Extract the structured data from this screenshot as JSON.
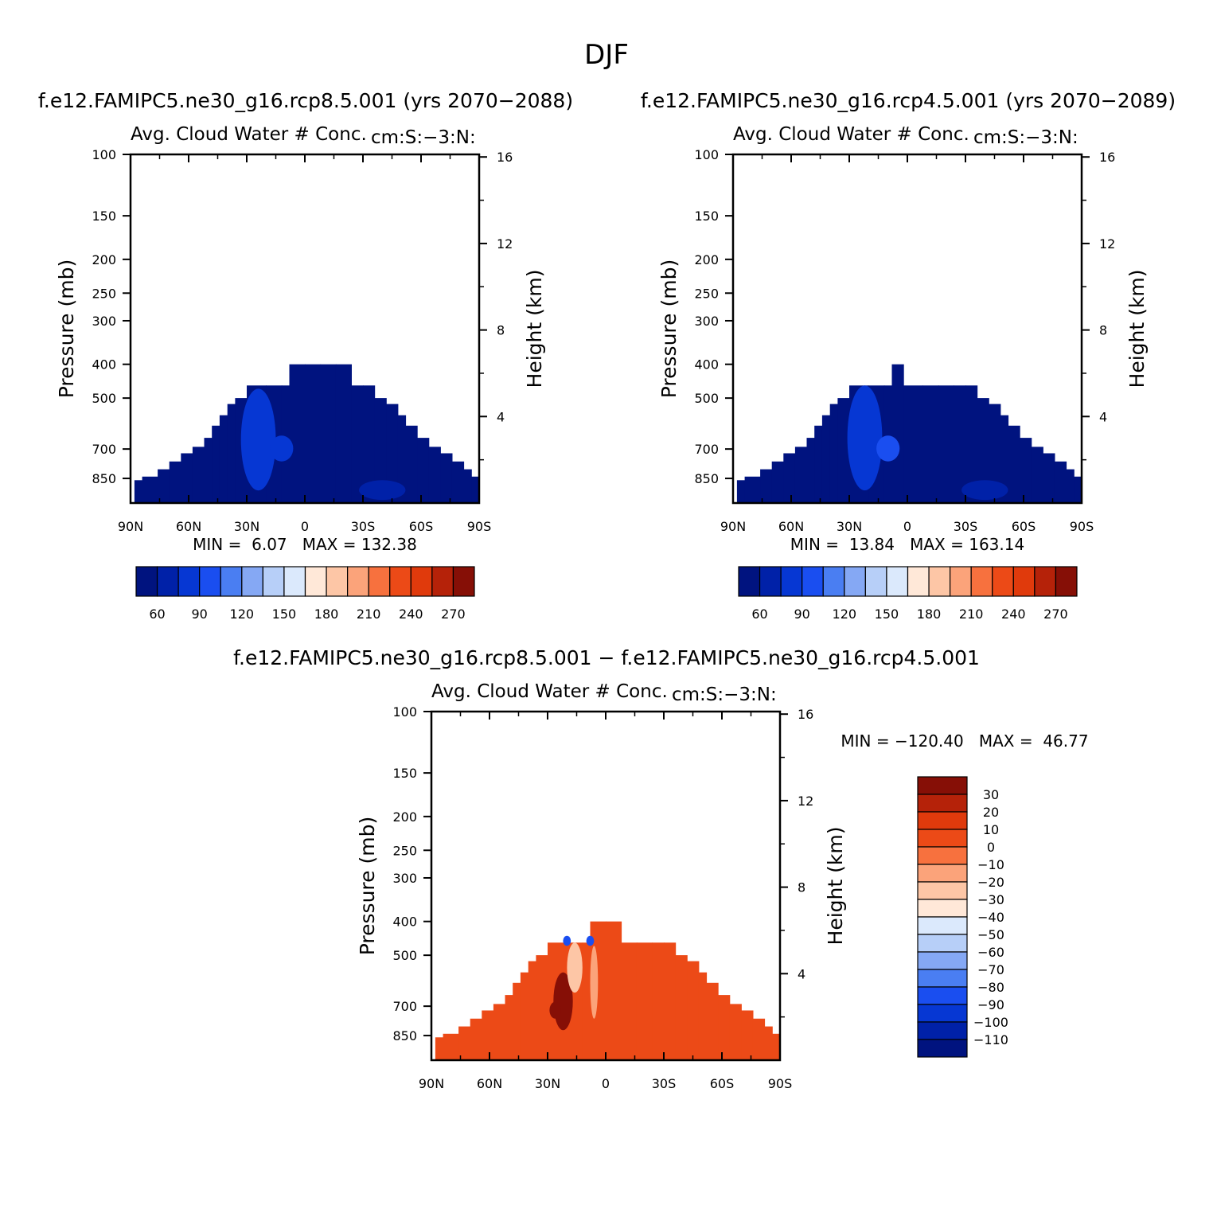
{
  "figure": {
    "title": "DJF",
    "diff_title": "f.e12.FAMIPC5.ne30_g16.rcp8.5.001 − f.e12.FAMIPC5.ne30_g16.rcp4.5.001"
  },
  "colors": {
    "abs": [
      "#00137f",
      "#0021a8",
      "#0637d3",
      "#1a4ef0",
      "#4a7ef2",
      "#85a8f4",
      "#b7cff8",
      "#dbe9fc",
      "#ffe8d8",
      "#fdc6a6",
      "#fba37a",
      "#f7713e",
      "#ec4a17",
      "#e03a0c",
      "#b52209",
      "#860f06"
    ],
    "diff": [
      "#00137f",
      "#0021a8",
      "#0637d3",
      "#1a4ef0",
      "#4a7ef2",
      "#85a8f4",
      "#b7cff8",
      "#dbe9fc",
      "#ffe8d8",
      "#fdc6a6",
      "#fba37a",
      "#f7713e",
      "#ec4a17",
      "#e03a0c",
      "#b52209",
      "#860f06"
    ]
  },
  "chart_data": [
    {
      "type": "heatmap",
      "id": "left",
      "case_title": "f.e12.FAMIPC5.ne30_g16.rcp8.5.001 (yrs 2070−2088)",
      "title": "Avg. Cloud Water # Conc.",
      "units": "cm:S:−3:N:",
      "xlabel": "",
      "ylabel": "Pressure (mb)",
      "ylabel_right": "Height (km)",
      "x_ticks": [
        "90N",
        "60N",
        "30N",
        "0",
        "30S",
        "60S",
        "90S"
      ],
      "x_values": [
        90,
        60,
        30,
        0,
        -30,
        -60,
        -90
      ],
      "y_ticks": [
        "100",
        "150",
        "200",
        "250",
        "300",
        "400",
        "500",
        "700",
        "850"
      ],
      "y_values": [
        100,
        150,
        200,
        250,
        300,
        400,
        500,
        700,
        850
      ],
      "ylim": [
        100,
        1000
      ],
      "height_ticks": [
        "16",
        "12",
        "8",
        "4"
      ],
      "height_values": [
        16,
        12,
        8,
        4
      ],
      "min_label": "MIN =",
      "min": "6.07",
      "max_label": "MAX =",
      "max": "132.38",
      "colorbar_labels": [
        "60",
        "90",
        "120",
        "150",
        "180",
        "210",
        "240",
        "270"
      ],
      "colorbar_levels": [
        60,
        90,
        120,
        150,
        180,
        210,
        240,
        270
      ],
      "data_top_pressure": [
        [
          88,
          860
        ],
        [
          84,
          840
        ],
        [
          76,
          800
        ],
        [
          70,
          760
        ],
        [
          64,
          720
        ],
        [
          58,
          690
        ],
        [
          52,
          650
        ],
        [
          48,
          600
        ],
        [
          44,
          560
        ],
        [
          40,
          520
        ],
        [
          36,
          500
        ],
        [
          30,
          460
        ],
        [
          20,
          460
        ],
        [
          12,
          460
        ],
        [
          8,
          400
        ],
        [
          0,
          400
        ],
        [
          -8,
          400
        ],
        [
          -16,
          400
        ],
        [
          -24,
          460
        ],
        [
          -30,
          460
        ],
        [
          -36,
          500
        ],
        [
          -42,
          520
        ],
        [
          -48,
          560
        ],
        [
          -52,
          600
        ],
        [
          -58,
          650
        ],
        [
          -64,
          690
        ],
        [
          -70,
          720
        ],
        [
          -76,
          760
        ],
        [
          -82,
          800
        ],
        [
          -86,
          840
        ]
      ],
      "enhanced_regions": [
        {
          "lat": 24,
          "p_top": 470,
          "p_bottom": 920,
          "half_width": 9,
          "value": 95
        },
        {
          "lat": 12,
          "p_top": 640,
          "p_bottom": 760,
          "half_width": 6,
          "value": 110
        },
        {
          "lat": -40,
          "p_top": 860,
          "p_bottom": 980,
          "half_width": 12,
          "value": 80
        }
      ],
      "base_value": 40
    },
    {
      "type": "heatmap",
      "id": "right",
      "case_title": "f.e12.FAMIPC5.ne30_g16.rcp4.5.001 (yrs 2070−2089)",
      "title": "Avg. Cloud Water # Conc.",
      "units": "cm:S:−3:N:",
      "xlabel": "",
      "ylabel": "Pressure (mb)",
      "ylabel_right": "Height (km)",
      "x_ticks": [
        "90N",
        "60N",
        "30N",
        "0",
        "30S",
        "60S",
        "90S"
      ],
      "x_values": [
        90,
        60,
        30,
        0,
        -30,
        -60,
        -90
      ],
      "y_ticks": [
        "100",
        "150",
        "200",
        "250",
        "300",
        "400",
        "500",
        "700",
        "850"
      ],
      "y_values": [
        100,
        150,
        200,
        250,
        300,
        400,
        500,
        700,
        850
      ],
      "ylim": [
        100,
        1000
      ],
      "height_ticks": [
        "16",
        "12",
        "8",
        "4"
      ],
      "height_values": [
        16,
        12,
        8,
        4
      ],
      "min_label": "MIN =",
      "min": "13.84",
      "max_label": "MAX =",
      "max": "163.14",
      "colorbar_labels": [
        "60",
        "90",
        "120",
        "150",
        "180",
        "210",
        "240",
        "270"
      ],
      "colorbar_levels": [
        60,
        90,
        120,
        150,
        180,
        210,
        240,
        270
      ],
      "data_top_pressure": [
        [
          88,
          860
        ],
        [
          84,
          840
        ],
        [
          76,
          800
        ],
        [
          70,
          760
        ],
        [
          64,
          720
        ],
        [
          58,
          690
        ],
        [
          52,
          650
        ],
        [
          48,
          600
        ],
        [
          44,
          560
        ],
        [
          40,
          520
        ],
        [
          36,
          500
        ],
        [
          30,
          460
        ],
        [
          20,
          460
        ],
        [
          12,
          460
        ],
        [
          8,
          400
        ],
        [
          2,
          460
        ],
        [
          -8,
          460
        ],
        [
          -16,
          460
        ],
        [
          -24,
          460
        ],
        [
          -30,
          460
        ],
        [
          -36,
          500
        ],
        [
          -42,
          520
        ],
        [
          -48,
          560
        ],
        [
          -52,
          600
        ],
        [
          -58,
          650
        ],
        [
          -64,
          690
        ],
        [
          -70,
          720
        ],
        [
          -76,
          760
        ],
        [
          -82,
          800
        ],
        [
          -86,
          840
        ]
      ],
      "enhanced_regions": [
        {
          "lat": 22,
          "p_top": 460,
          "p_bottom": 920,
          "half_width": 9,
          "value": 100
        },
        {
          "lat": 10,
          "p_top": 640,
          "p_bottom": 760,
          "half_width": 6,
          "value": 120
        },
        {
          "lat": -40,
          "p_top": 860,
          "p_bottom": 980,
          "half_width": 12,
          "value": 80
        }
      ],
      "base_value": 40
    },
    {
      "type": "heatmap",
      "id": "diff",
      "title": "Avg. Cloud Water # Conc.",
      "units": "cm:S:−3:N:",
      "xlabel": "",
      "ylabel": "Pressure (mb)",
      "ylabel_right": "Height (km)",
      "x_ticks": [
        "90N",
        "60N",
        "30N",
        "0",
        "30S",
        "60S",
        "90S"
      ],
      "x_values": [
        90,
        60,
        30,
        0,
        -30,
        -60,
        -90
      ],
      "y_ticks": [
        "100",
        "150",
        "200",
        "250",
        "300",
        "400",
        "500",
        "700",
        "850"
      ],
      "y_values": [
        100,
        150,
        200,
        250,
        300,
        400,
        500,
        700,
        850
      ],
      "ylim": [
        100,
        1000
      ],
      "height_ticks": [
        "16",
        "12",
        "8",
        "4"
      ],
      "height_values": [
        16,
        12,
        8,
        4
      ],
      "min_label": "MIN =",
      "min": "−120.40",
      "max_label": "MAX =",
      "max": "46.77",
      "colorbar_labels": [
        "30",
        "20",
        "10",
        "0",
        "−10",
        "−20",
        "−30",
        "−40",
        "−50",
        "−60",
        "−70",
        "−80",
        "−90",
        "−100",
        "−110"
      ],
      "colorbar_levels": [
        30,
        20,
        10,
        0,
        -10,
        -20,
        -30,
        -40,
        -50,
        -60,
        -70,
        -80,
        -90,
        -100,
        -110
      ],
      "data_top_pressure": [
        [
          88,
          860
        ],
        [
          84,
          840
        ],
        [
          76,
          800
        ],
        [
          70,
          760
        ],
        [
          64,
          720
        ],
        [
          58,
          690
        ],
        [
          52,
          650
        ],
        [
          48,
          600
        ],
        [
          44,
          560
        ],
        [
          40,
          520
        ],
        [
          36,
          500
        ],
        [
          30,
          460
        ],
        [
          20,
          460
        ],
        [
          12,
          460
        ],
        [
          8,
          400
        ],
        [
          0,
          400
        ],
        [
          -8,
          460
        ],
        [
          -16,
          460
        ],
        [
          -24,
          460
        ],
        [
          -30,
          460
        ],
        [
          -36,
          500
        ],
        [
          -42,
          520
        ],
        [
          -48,
          560
        ],
        [
          -52,
          600
        ],
        [
          -58,
          650
        ],
        [
          -64,
          690
        ],
        [
          -70,
          720
        ],
        [
          -76,
          760
        ],
        [
          -82,
          800
        ],
        [
          -86,
          840
        ]
      ],
      "enhanced_regions": [
        {
          "lat": 22,
          "p_top": 560,
          "p_bottom": 820,
          "half_width": 5,
          "value": 30
        },
        {
          "lat": 26,
          "p_top": 680,
          "p_bottom": 760,
          "half_width": 3,
          "value": 40
        },
        {
          "lat": 16,
          "p_top": 460,
          "p_bottom": 640,
          "half_width": 4,
          "value": -30
        },
        {
          "lat": 20,
          "p_top": 440,
          "p_bottom": 470,
          "half_width": 2,
          "value": -90
        },
        {
          "lat": 8,
          "p_top": 440,
          "p_bottom": 470,
          "half_width": 2,
          "value": -90
        },
        {
          "lat": 6,
          "p_top": 470,
          "p_bottom": 760,
          "half_width": 2,
          "value": -20
        }
      ],
      "base_value": 5
    }
  ]
}
